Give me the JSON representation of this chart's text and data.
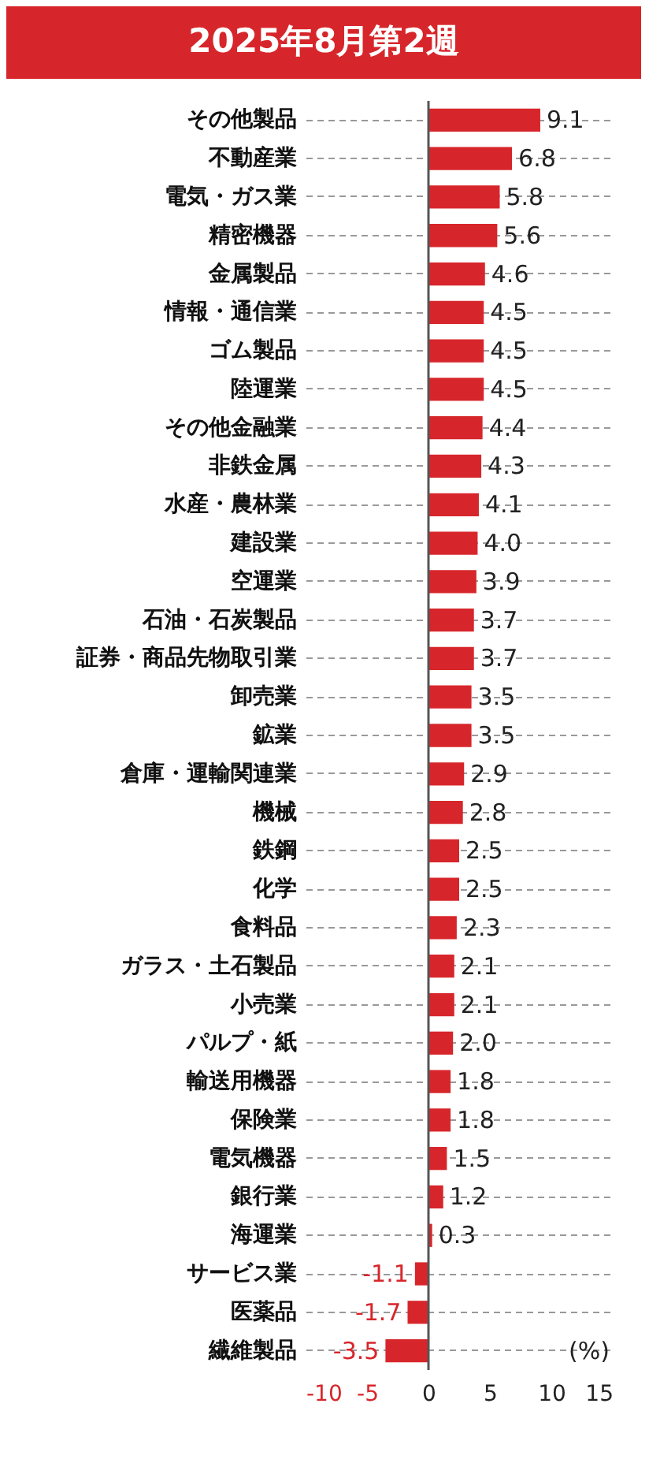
{
  "chart_data": {
    "type": "bar",
    "orientation": "horizontal",
    "title": "2025年8月第2週",
    "categories": [
      "その他製品",
      "不動産業",
      "電気・ガス業",
      "精密機器",
      "金属製品",
      "情報・通信業",
      "ゴム製品",
      "陸運業",
      "その他金融業",
      "非鉄金属",
      "水産・農林業",
      "建設業",
      "空運業",
      "石油・石炭製品",
      "証券・商品先物取引業",
      "卸売業",
      "鉱業",
      "倉庫・運輸関連業",
      "機械",
      "鉄鋼",
      "化学",
      "食料品",
      "ガラス・土石製品",
      "小売業",
      "パルプ・紙",
      "輸送用機器",
      "保険業",
      "電気機器",
      "銀行業",
      "海運業",
      "サービス業",
      "医薬品",
      "繊維製品"
    ],
    "values": [
      9.1,
      6.8,
      5.8,
      5.6,
      4.6,
      4.5,
      4.5,
      4.5,
      4.4,
      4.3,
      4.1,
      4.0,
      3.9,
      3.7,
      3.7,
      3.5,
      3.5,
      2.9,
      2.8,
      2.5,
      2.5,
      2.3,
      2.1,
      2.1,
      2.0,
      1.8,
      1.8,
      1.5,
      1.2,
      0.3,
      -1.1,
      -1.7,
      -3.5
    ],
    "value_labels": [
      "9.1",
      "6.8",
      "5.8",
      "5.6",
      "4.6",
      "4.5",
      "4.5",
      "4.5",
      "4.4",
      "4.3",
      "4.1",
      "4.0",
      "3.9",
      "3.7",
      "3.7",
      "3.5",
      "3.5",
      "2.9",
      "2.8",
      "2.5",
      "2.5",
      "2.3",
      "2.1",
      "2.1",
      "2.0",
      "1.8",
      "1.8",
      "1.5",
      "1.2",
      "0.3",
      "-1.1",
      "-1.7",
      "-3.5"
    ],
    "color": "#d7262b",
    "xlim": [
      -10,
      15
    ],
    "xticks": [
      -10,
      -5,
      0,
      5,
      10,
      15
    ],
    "grid": "y",
    "ref_lines": [
      {
        "axis": "x",
        "value": 0,
        "color": "#555555"
      }
    ],
    "annotations": [
      "(%)"
    ]
  }
}
